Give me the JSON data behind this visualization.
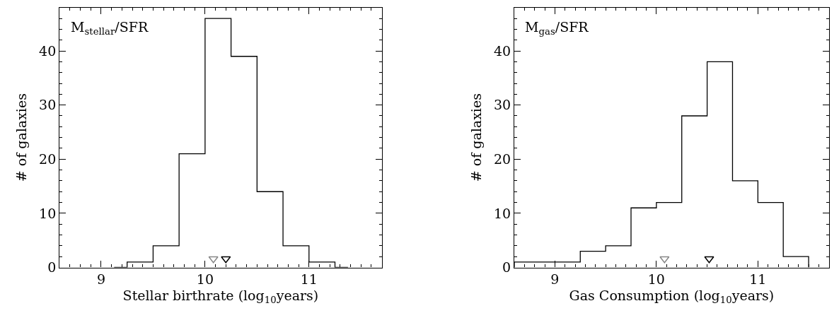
{
  "chart_data": [
    {
      "type": "histogram",
      "xlabel": "Stellar birthrate (log$_{10}$years)",
      "ylabel": "# of galaxies",
      "annotations": [
        "M$_{stellar}$/SFR"
      ],
      "bins": [
        9.125,
        9.25,
        9.5,
        9.75,
        10,
        10.25,
        10.5,
        10.75,
        11,
        11.25,
        11.375
      ],
      "values": [
        0,
        1,
        4,
        21,
        46,
        39,
        14,
        4,
        1,
        0
      ],
      "color": "#000000",
      "xlim": [
        8.6,
        11.7
      ],
      "xticks": [
        9,
        10,
        11
      ],
      "ylim": [
        0,
        48
      ],
      "yticks": [
        0,
        10,
        20,
        30,
        40
      ],
      "series": [
        {
          "type": "scatter",
          "x": [
            10.08
          ],
          "values": [
            1.6
          ],
          "color": "#888888",
          "marker": "triangle"
        },
        {
          "type": "scatter",
          "x": [
            10.2
          ],
          "values": [
            1.6
          ],
          "color": "#000000",
          "marker": "triangle"
        }
      ]
    },
    {
      "type": "histogram",
      "xlabel": "Gas Consumption (log$_{10}$years)",
      "ylabel": "# of galaxies",
      "annotations": [
        "M$_{gas}$/SFR"
      ],
      "bins": [
        8.6,
        9.25,
        9.5,
        9.75,
        10,
        10.25,
        10.5,
        10.75,
        11,
        11.25,
        11.5
      ],
      "values": [
        1,
        3,
        4,
        11,
        12,
        28,
        38,
        16,
        12,
        2
      ],
      "color": "#000000",
      "xlim": [
        8.6,
        11.7
      ],
      "xticks": [
        9,
        10,
        11
      ],
      "ylim": [
        0,
        48
      ],
      "yticks": [
        0,
        10,
        20,
        30,
        40
      ],
      "series": [
        {
          "type": "scatter",
          "x": [
            10.08
          ],
          "values": [
            1.6
          ],
          "color": "#888888",
          "marker": "triangle"
        },
        {
          "type": "scatter",
          "x": [
            10.52
          ],
          "values": [
            1.6
          ],
          "color": "#000000",
          "marker": "triangle"
        }
      ]
    }
  ]
}
